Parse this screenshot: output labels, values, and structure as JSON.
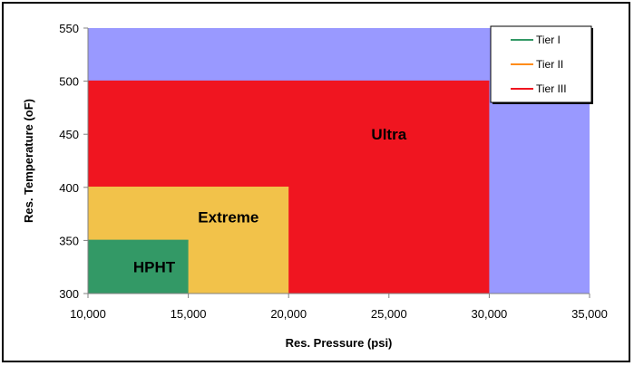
{
  "chart_data": {
    "type": "area",
    "title": "",
    "xlabel": "Res. Pressure (psi)",
    "ylabel": "Res. Temperature (oF)",
    "xlim": [
      10000,
      35000
    ],
    "ylim": [
      300,
      550
    ],
    "xticks": [
      10000,
      15000,
      20000,
      25000,
      30000,
      35000
    ],
    "xtick_labels": [
      "10,000",
      "15,000",
      "20,000",
      "25,000",
      "30,000",
      "35,000"
    ],
    "yticks": [
      300,
      350,
      400,
      450,
      500,
      550
    ],
    "ytick_labels": [
      "300",
      "350",
      "400",
      "450",
      "500",
      "550"
    ],
    "plot_background": "#9999ff",
    "grid": false,
    "legend_position": "top-right",
    "regions": [
      {
        "label": "Ultra",
        "x": [
          10000,
          30000
        ],
        "y": [
          300,
          500
        ],
        "color": "#f01520",
        "label_at": [
          25000,
          450
        ]
      },
      {
        "label": "Extreme",
        "x": [
          10000,
          20000
        ],
        "y": [
          300,
          400
        ],
        "color": "#f2c24a",
        "label_at": [
          17000,
          372
        ]
      },
      {
        "label": "HPHT",
        "x": [
          10000,
          15000
        ],
        "y": [
          300,
          350
        ],
        "color": "#339966",
        "label_at": [
          13300,
          325
        ]
      }
    ],
    "series": [
      {
        "name": "Tier I",
        "color": "#339966"
      },
      {
        "name": "Tier II",
        "color": "#ff8c1a"
      },
      {
        "name": "Tier III",
        "color": "#f01520"
      }
    ]
  }
}
